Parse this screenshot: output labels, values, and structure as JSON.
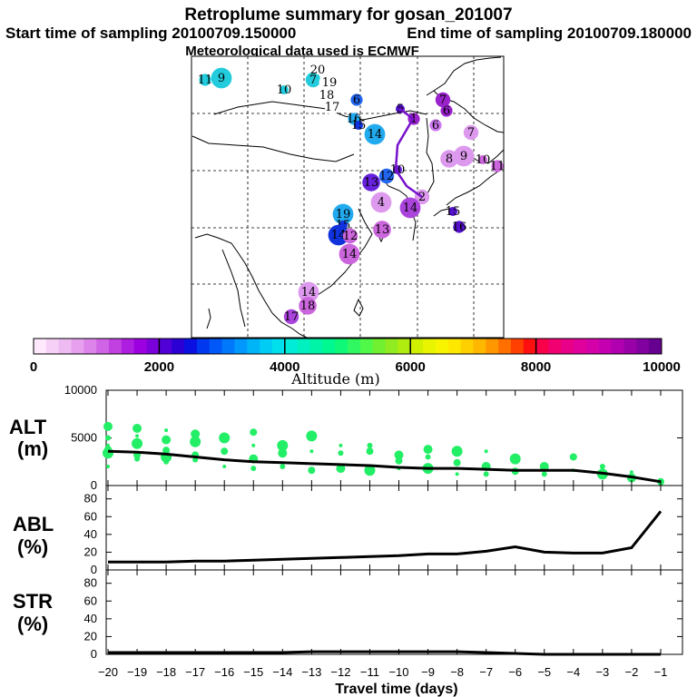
{
  "header": {
    "title": "Retroplume summary for gosan_201007",
    "start": "Start time of sampling 20100709.150000",
    "end": "End time of sampling 20100709.180000",
    "met": "Meteorological data used is ECMWF"
  },
  "map": {
    "plume_points": [
      {
        "label": "11",
        "day": 11,
        "color": "#22ccdd"
      },
      {
        "label": "9",
        "day": 9,
        "color": "#22ccdd"
      },
      {
        "label": "10",
        "day": 10,
        "color": "#22ccdd"
      },
      {
        "label": "7",
        "day": 7,
        "color": "#22ccdd"
      },
      {
        "label": "20",
        "day": 20,
        "color": "#ffffff"
      },
      {
        "label": "19",
        "day": 19,
        "color": "#ffffff"
      },
      {
        "label": "18",
        "day": 18,
        "color": "#ffffff"
      },
      {
        "label": "17",
        "day": 17,
        "color": "#ffffff"
      },
      {
        "label": "16",
        "day": 16,
        "color": "#22aaee"
      },
      {
        "label": "6",
        "day": 6,
        "color": "#2266ee"
      },
      {
        "label": "15",
        "day": 15,
        "color": "#1133dd"
      },
      {
        "label": "14",
        "day": 14,
        "color": "#22aaee"
      },
      {
        "label": "5",
        "day": 5,
        "color": "#5511cc"
      },
      {
        "label": "7",
        "day": 7,
        "color": "#9922cc"
      },
      {
        "label": "6",
        "day": 6,
        "color": "#9922cc"
      },
      {
        "label": "6",
        "day": 6,
        "color": "#cc77ee"
      },
      {
        "label": "7",
        "day": 7,
        "color": "#dd99ee"
      },
      {
        "label": "8",
        "day": 8,
        "color": "#dd99ee"
      },
      {
        "label": "9",
        "day": 9,
        "color": "#dd99ee"
      },
      {
        "label": "10",
        "day": 10,
        "color": "#cc66dd"
      },
      {
        "label": "11",
        "day": 11,
        "color": "#cc66dd"
      },
      {
        "label": "10",
        "day": 10,
        "color": "#6622dd"
      },
      {
        "label": "13",
        "day": 13,
        "color": "#6622dd"
      },
      {
        "label": "12",
        "day": 12,
        "color": "#2266ee"
      },
      {
        "label": "2",
        "day": 2,
        "color": "#dd99ee"
      },
      {
        "label": "4",
        "day": 4,
        "color": "#dd99ee"
      },
      {
        "label": "14",
        "day": 14,
        "color": "#aa44dd"
      },
      {
        "label": "15",
        "day": 15,
        "color": "#5511cc"
      },
      {
        "label": "16",
        "day": 16,
        "color": "#5511cc"
      },
      {
        "label": "19",
        "day": 19,
        "color": "#22aaee"
      },
      {
        "label": "15",
        "day": 15,
        "color": "#1133dd"
      },
      {
        "label": "14",
        "day": 14,
        "color": "#1133dd"
      },
      {
        "label": "12",
        "day": 12,
        "color": "#cc66dd"
      },
      {
        "label": "13",
        "day": 13,
        "color": "#cc66dd"
      },
      {
        "label": "14",
        "day": 14,
        "color": "#cc66dd"
      },
      {
        "label": "14",
        "day": 14,
        "color": "#dd99ee"
      },
      {
        "label": "18",
        "day": 18,
        "color": "#cc66dd"
      },
      {
        "label": "17",
        "day": 17,
        "color": "#aa44dd"
      },
      {
        "label": "1",
        "day": 1,
        "color": "#9922cc"
      }
    ]
  },
  "colorbar": {
    "label": "Altitude (m)",
    "ticks": [
      "0",
      "2000",
      "4000",
      "6000",
      "8000",
      "10000"
    ],
    "colors": [
      "#fde8fc",
      "#f6d0f6",
      "#eebaf2",
      "#e6a0ee",
      "#dc84ea",
      "#d064e6",
      "#c040e0",
      "#ae1ee0",
      "#9c00e0",
      "#7a00dc",
      "#5200d8",
      "#2a00d4",
      "#0a10e0",
      "#0038f0",
      "#0058f8",
      "#0078fc",
      "#0098fc",
      "#00b4f8",
      "#00ccf4",
      "#00e0ec",
      "#00ecd8",
      "#00f0c0",
      "#00f4a8",
      "#00f890",
      "#10f878",
      "#30f860",
      "#50f848",
      "#70f030",
      "#90ec20",
      "#b0ec10",
      "#d0f000",
      "#e8f400",
      "#f8f400",
      "#ffe800",
      "#ffd000",
      "#ffb800",
      "#ff9800",
      "#ff7000",
      "#ff4000",
      "#ff1010",
      "#f8004a",
      "#f00070",
      "#e80088",
      "#e0009c",
      "#d400a8",
      "#c400b0",
      "#b000b0",
      "#9a00a8",
      "#8000a0",
      "#660090"
    ]
  },
  "chart_data": [
    {
      "type": "scatter",
      "title": "ALT (m)",
      "xlabel": "Travel time (days)",
      "ylabel": "ALT (m)",
      "xlim": [
        -20,
        -0.5
      ],
      "ylim": [
        0,
        10000
      ],
      "yticks": [
        "0",
        "5000",
        "10000"
      ],
      "x": [
        -20,
        -19,
        -18,
        -17,
        -16,
        -15,
        -14,
        -13,
        -12,
        -11,
        -10,
        -9,
        -8,
        -7,
        -6,
        -5,
        -4,
        -3,
        -2,
        -1
      ],
      "mean": [
        3600,
        3500,
        3300,
        3000,
        2700,
        2500,
        2400,
        2300,
        2200,
        2100,
        1900,
        1800,
        1800,
        1700,
        1600,
        1600,
        1600,
        1300,
        900,
        400
      ],
      "scatter": {
        "color": "#22ee66",
        "points": [
          [
            -20,
            4200
          ],
          [
            -20,
            3800
          ],
          [
            -20,
            3400
          ],
          [
            -20,
            5000
          ],
          [
            -20,
            6200
          ],
          [
            -20,
            2000
          ],
          [
            -19,
            3200
          ],
          [
            -19,
            4400
          ],
          [
            -19,
            2800
          ],
          [
            -19,
            6000
          ],
          [
            -19,
            5200
          ],
          [
            -18,
            3700
          ],
          [
            -18,
            3000
          ],
          [
            -18,
            2500
          ],
          [
            -18,
            4800
          ],
          [
            -18,
            5800
          ],
          [
            -17,
            3200
          ],
          [
            -17,
            4600
          ],
          [
            -17,
            2700
          ],
          [
            -17,
            5400
          ],
          [
            -16,
            2000
          ],
          [
            -16,
            3600
          ],
          [
            -16,
            5000
          ],
          [
            -15,
            1800
          ],
          [
            -15,
            2800
          ],
          [
            -15,
            4200
          ],
          [
            -15,
            5600
          ],
          [
            -14,
            4200
          ],
          [
            -14,
            2000
          ],
          [
            -14,
            3400
          ],
          [
            -13,
            3600
          ],
          [
            -13,
            1600
          ],
          [
            -13,
            5200
          ],
          [
            -12,
            3400
          ],
          [
            -12,
            1800
          ],
          [
            -12,
            4200
          ],
          [
            -11,
            3600
          ],
          [
            -11,
            1600
          ],
          [
            -11,
            4200
          ],
          [
            -10,
            3200
          ],
          [
            -10,
            1800
          ],
          [
            -10,
            2600
          ],
          [
            -9,
            1800
          ],
          [
            -9,
            3000
          ],
          [
            -9,
            3800
          ],
          [
            -8,
            1200
          ],
          [
            -8,
            2400
          ],
          [
            -8,
            3600
          ],
          [
            -7,
            1200
          ],
          [
            -7,
            2000
          ],
          [
            -7,
            3600
          ],
          [
            -6,
            1500
          ],
          [
            -6,
            2800
          ],
          [
            -5,
            1200
          ],
          [
            -5,
            2000
          ],
          [
            -4,
            1600
          ],
          [
            -4,
            3000
          ],
          [
            -3,
            1200
          ],
          [
            -3,
            2000
          ],
          [
            -2,
            800
          ],
          [
            -2,
            1400
          ],
          [
            -1,
            400
          ]
        ]
      }
    },
    {
      "type": "line",
      "title": "ABL (%)",
      "ylabel": "ABL (%)",
      "xlim": [
        -20,
        -0.5
      ],
      "ylim": [
        0,
        95
      ],
      "yticks": [
        "0",
        "20",
        "40",
        "60",
        "80"
      ],
      "x": [
        -20,
        -19,
        -18,
        -17,
        -16,
        -15,
        -14,
        -13,
        -12,
        -11,
        -10,
        -9,
        -8,
        -7,
        -6,
        -5,
        -4,
        -3,
        -2,
        -1
      ],
      "values": [
        9,
        9,
        9,
        10,
        10,
        11,
        12,
        13,
        14,
        15,
        16,
        18,
        18,
        21,
        26,
        20,
        19,
        19,
        25,
        66
      ]
    },
    {
      "type": "line",
      "title": "STR (%)",
      "ylabel": "STR (%)",
      "xlim": [
        -20,
        -0.5
      ],
      "ylim": [
        0,
        95
      ],
      "yticks": [
        "0",
        "20",
        "40",
        "60",
        "80"
      ],
      "x": [
        -20,
        -19,
        -18,
        -17,
        -16,
        -15,
        -14,
        -13,
        -12,
        -11,
        -10,
        -9,
        -8,
        -7,
        -6,
        -5,
        -4,
        -3,
        -2,
        -1
      ],
      "values": [
        2,
        2,
        2,
        2,
        2,
        2,
        2,
        3,
        3,
        3,
        3,
        3,
        3,
        2,
        1,
        0,
        0,
        0,
        0,
        0
      ]
    }
  ],
  "xaxis": {
    "label": "Travel time (days)",
    "ticks": [
      "−20",
      "−19",
      "−18",
      "−17",
      "−16",
      "−15",
      "−14",
      "−13",
      "−12",
      "−11",
      "−10",
      "−9",
      "−8",
      "−7",
      "−6",
      "−5",
      "−4",
      "−3",
      "−2",
      "−1"
    ]
  },
  "panel_labels": {
    "alt": [
      "ALT",
      "(m)"
    ],
    "abl": [
      "ABL",
      "(%)"
    ],
    "str": [
      "STR",
      "(%)"
    ]
  }
}
